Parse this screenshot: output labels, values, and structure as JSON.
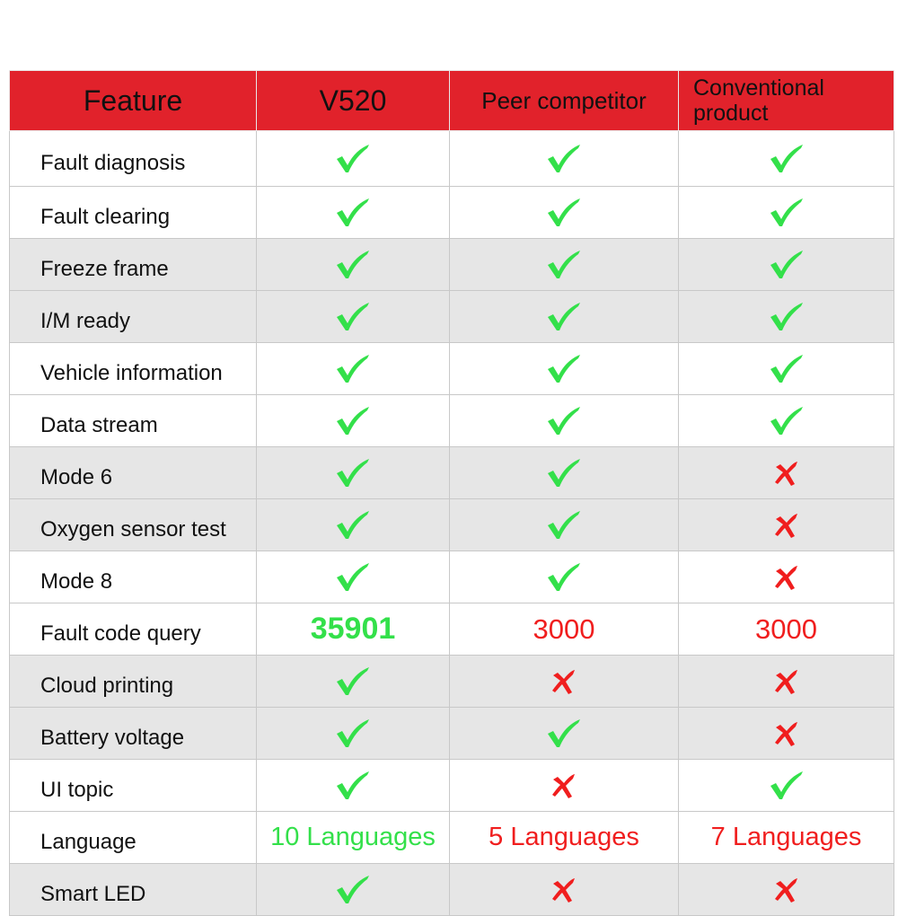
{
  "colors": {
    "header_bg": "#e1222b",
    "check": "#33e04a",
    "cross": "#f01e1e",
    "row_gray": "#e6e6e6"
  },
  "header": {
    "feature": "Feature",
    "col1": "V520",
    "col2": "Peer competitor",
    "col3": "Conventional product"
  },
  "rows": [
    {
      "feature": "Fault diagnosis",
      "cells": [
        "check",
        "check",
        "check"
      ],
      "gray": false
    },
    {
      "feature": "Fault clearing",
      "cells": [
        "check",
        "check",
        "check"
      ],
      "gray": false
    },
    {
      "feature": "Freeze frame",
      "cells": [
        "check",
        "check",
        "check"
      ],
      "gray": true
    },
    {
      "feature": "I/M ready",
      "cells": [
        "check",
        "check",
        "check"
      ],
      "gray": true
    },
    {
      "feature": "Vehicle information",
      "cells": [
        "check",
        "check",
        "check"
      ],
      "gray": false
    },
    {
      "feature": "Data stream",
      "cells": [
        "check",
        "check",
        "check"
      ],
      "gray": false
    },
    {
      "feature": "Mode 6",
      "cells": [
        "check",
        "check",
        "cross"
      ],
      "gray": true
    },
    {
      "feature": "Oxygen sensor test",
      "cells": [
        "check",
        "check",
        "cross"
      ],
      "gray": true
    },
    {
      "feature": "Mode 8",
      "cells": [
        "check",
        "check",
        "cross"
      ],
      "gray": false
    },
    {
      "feature": "Fault code query",
      "cells": [
        {
          "text": "35901",
          "color": "green"
        },
        {
          "text": "3000",
          "color": "red"
        },
        {
          "text": "3000",
          "color": "red"
        }
      ],
      "gray": false
    },
    {
      "feature": "Cloud printing",
      "cells": [
        "check",
        "cross",
        "cross"
      ],
      "gray": true
    },
    {
      "feature": "Battery voltage",
      "cells": [
        "check",
        "check",
        "cross"
      ],
      "gray": true
    },
    {
      "feature": "UI topic",
      "cells": [
        "check",
        "cross",
        "check"
      ],
      "gray": false
    },
    {
      "feature": "Language",
      "cells": [
        {
          "text": "10 Languages",
          "color": "green"
        },
        {
          "text": "5 Languages",
          "color": "red"
        },
        {
          "text": "7 Languages",
          "color": "red"
        }
      ],
      "gray": false
    },
    {
      "feature": "Smart LED",
      "cells": [
        "check",
        "cross",
        "cross"
      ],
      "gray": true
    }
  ]
}
